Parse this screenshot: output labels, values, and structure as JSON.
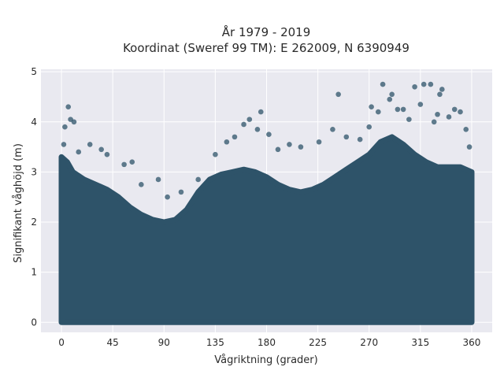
{
  "chart_data": {
    "type": "scatter",
    "title_lines": [
      "År 1979 - 2019",
      "Koordinat (Sweref 99 TM): E 262009, N 6390949"
    ],
    "xlabel": "Vågriktning (grader)",
    "ylabel": "Signifikant våghöjd (m)",
    "xlim": [
      -18,
      378
    ],
    "ylim": [
      -0.2,
      5.05
    ],
    "xticks": [
      0,
      45,
      90,
      135,
      180,
      225,
      270,
      315,
      360
    ],
    "yticks": [
      0,
      1,
      2,
      3,
      4,
      5
    ],
    "grid": true,
    "legend": "none",
    "colors": {
      "marker": "#2e5369",
      "plot_bg": "#e9e9f0",
      "grid": "#ffffff"
    },
    "envelope": {
      "direction_deg": [
        0,
        5,
        10,
        20,
        30,
        40,
        50,
        60,
        70,
        80,
        90,
        100,
        110,
        120,
        130,
        140,
        150,
        160,
        170,
        180,
        190,
        200,
        210,
        220,
        230,
        240,
        250,
        260,
        270,
        280,
        290,
        300,
        310,
        320,
        330,
        340,
        350,
        360
      ],
      "upper_height_m": [
        3.3,
        3.2,
        3.0,
        2.85,
        2.75,
        2.65,
        2.5,
        2.3,
        2.15,
        2.05,
        2.0,
        2.05,
        2.25,
        2.6,
        2.85,
        2.95,
        3.0,
        3.05,
        3.0,
        2.9,
        2.75,
        2.65,
        2.6,
        2.65,
        2.75,
        2.9,
        3.05,
        3.2,
        3.35,
        3.6,
        3.7,
        3.55,
        3.35,
        3.2,
        3.1,
        3.1,
        3.1,
        3.0
      ]
    },
    "points": [
      {
        "x": 2,
        "y": 3.55
      },
      {
        "x": 3,
        "y": 3.9
      },
      {
        "x": 6,
        "y": 4.3
      },
      {
        "x": 8,
        "y": 4.05
      },
      {
        "x": 11,
        "y": 4.0
      },
      {
        "x": 15,
        "y": 3.4
      },
      {
        "x": 25,
        "y": 3.55
      },
      {
        "x": 35,
        "y": 3.45
      },
      {
        "x": 40,
        "y": 3.35
      },
      {
        "x": 55,
        "y": 3.15
      },
      {
        "x": 62,
        "y": 3.2
      },
      {
        "x": 70,
        "y": 2.75
      },
      {
        "x": 85,
        "y": 2.85
      },
      {
        "x": 93,
        "y": 2.5
      },
      {
        "x": 105,
        "y": 2.6
      },
      {
        "x": 120,
        "y": 2.85
      },
      {
        "x": 135,
        "y": 3.35
      },
      {
        "x": 145,
        "y": 3.6
      },
      {
        "x": 152,
        "y": 3.7
      },
      {
        "x": 160,
        "y": 3.95
      },
      {
        "x": 165,
        "y": 4.05
      },
      {
        "x": 172,
        "y": 3.85
      },
      {
        "x": 175,
        "y": 4.2
      },
      {
        "x": 182,
        "y": 3.75
      },
      {
        "x": 190,
        "y": 3.45
      },
      {
        "x": 200,
        "y": 3.55
      },
      {
        "x": 210,
        "y": 3.5
      },
      {
        "x": 226,
        "y": 3.6
      },
      {
        "x": 238,
        "y": 3.85
      },
      {
        "x": 243,
        "y": 4.55
      },
      {
        "x": 250,
        "y": 3.7
      },
      {
        "x": 262,
        "y": 3.65
      },
      {
        "x": 270,
        "y": 3.9
      },
      {
        "x": 272,
        "y": 4.3
      },
      {
        "x": 278,
        "y": 4.2
      },
      {
        "x": 282,
        "y": 4.75
      },
      {
        "x": 288,
        "y": 4.45
      },
      {
        "x": 290,
        "y": 4.55
      },
      {
        "x": 295,
        "y": 4.25
      },
      {
        "x": 300,
        "y": 4.25
      },
      {
        "x": 305,
        "y": 4.05
      },
      {
        "x": 310,
        "y": 4.7
      },
      {
        "x": 315,
        "y": 4.35
      },
      {
        "x": 318,
        "y": 4.75
      },
      {
        "x": 324,
        "y": 4.75
      },
      {
        "x": 327,
        "y": 4.0
      },
      {
        "x": 330,
        "y": 4.15
      },
      {
        "x": 332,
        "y": 4.55
      },
      {
        "x": 334,
        "y": 4.65
      },
      {
        "x": 340,
        "y": 4.1
      },
      {
        "x": 345,
        "y": 4.25
      },
      {
        "x": 350,
        "y": 4.2
      },
      {
        "x": 355,
        "y": 3.85
      },
      {
        "x": 358,
        "y": 3.5
      }
    ]
  }
}
